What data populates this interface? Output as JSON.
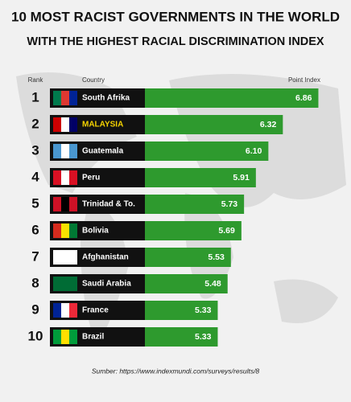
{
  "chart_data": {
    "type": "bar",
    "title": "10 MOST RACIST GOVERNMENTS IN THE WORLD",
    "subtitle": "WITH THE HIGHEST RACIAL DISCRIMINATION INDEX",
    "rank_header": "Rank",
    "category_header": "Country",
    "value_header": "Point Index",
    "ranks": [
      1,
      2,
      3,
      4,
      5,
      6,
      7,
      8,
      9,
      10
    ],
    "categories": [
      "South Afrika",
      "MALAYSIA",
      "Guatemala",
      "Peru",
      "Trinidad & To.",
      "Bolivia",
      "Afghanistan",
      "Saudi Arabia",
      "France",
      "Brazil"
    ],
    "values": [
      6.86,
      6.32,
      6.1,
      5.91,
      5.73,
      5.69,
      5.53,
      5.48,
      5.33,
      5.33
    ],
    "value_labels": [
      "6.86",
      "6.32",
      "6.10",
      "5.91",
      "5.73",
      "5.69",
      "5.53",
      "5.48",
      "5.33",
      "5.33"
    ],
    "color": "#2e9a2e",
    "source": "Sumber: https://www.indexmundi.com/surveys/results/8"
  }
}
